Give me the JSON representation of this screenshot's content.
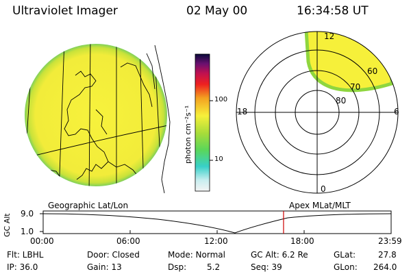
{
  "header": {
    "title": "Ultraviolet Imager",
    "date": "02 May 00",
    "time": "16:34:58 UT"
  },
  "colorbar": {
    "unit_label": "photon cm⁻²s⁻¹",
    "tick_100": "100",
    "tick_10": "10"
  },
  "polar_plot": {
    "mlt_labels": {
      "top": "12",
      "bottom": "0",
      "left": "18",
      "right": "6"
    },
    "lat_labels": {
      "l60": "60",
      "l70": "70",
      "l80": "80"
    }
  },
  "timeline": {
    "left_label": "Geographic Lat/Lon",
    "right_label": "Apex MLat/MLT",
    "y_axis_label": "GC Alt",
    "y_ticks": [
      "9.0",
      "1.0"
    ],
    "x_ticks": [
      "00:00",
      "06:00",
      "12:00",
      "18:00",
      "23:59"
    ],
    "marker_time_hours": 16.58
  },
  "info": {
    "flt": "Flt: LBHL",
    "ip": "IP: 36.0",
    "door": "Door: Closed",
    "gain": "Gain: 13",
    "mode": "Mode: Normal",
    "dsp_label": "Dsp:",
    "dsp_value": "5.2",
    "gc_alt": "GC Alt: 6.2 Re",
    "seq": "Seq: 39",
    "glat_label": "GLat:",
    "glat_value": "27.8",
    "glon_label": "GLon:",
    "glon_value": "264.0"
  },
  "colors": {
    "aurora_yellow": "#f6f03a",
    "aurora_green": "#a6dc3a",
    "aurora_cyan": "#3ad4c8",
    "marker_red": "#cc0000"
  }
}
